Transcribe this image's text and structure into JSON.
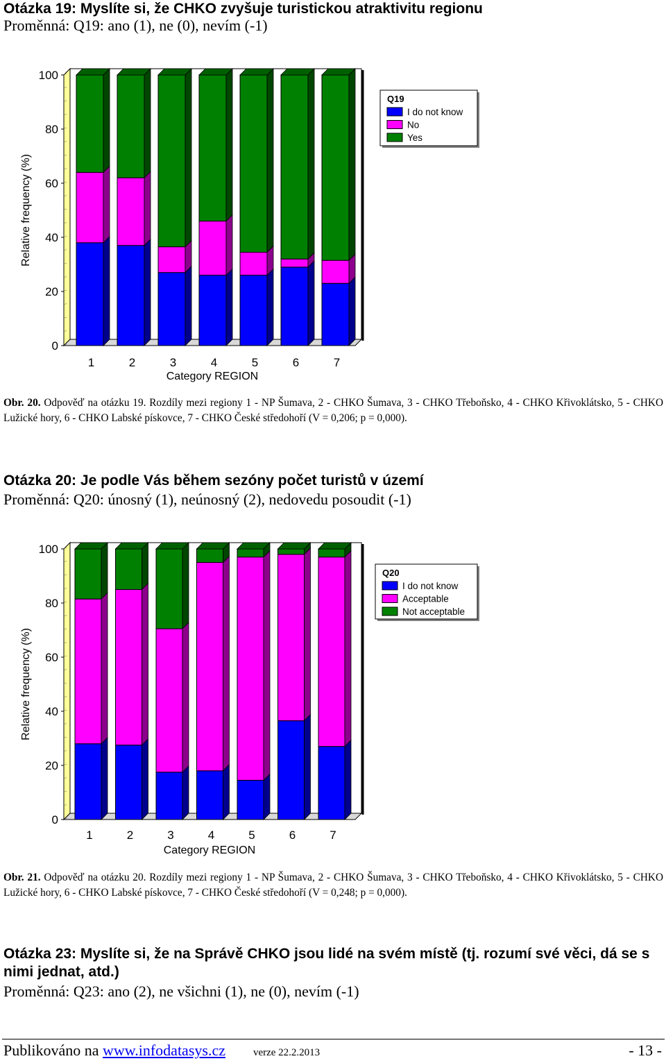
{
  "sections": [
    {
      "title": "Otázka 19: Myslíte si, že CHKO zvyšuje turistickou atraktivitu regionu",
      "variable": "Proměnná: Q19: ano (1), ne (0), nevím (-1)",
      "caption": {
        "label": "Obr. 20.",
        "text": " Odpověď na otázku 19. Rozdíly mezi regiony 1 - NP Šumava, 2 - CHKO Šumava, 3 - CHKO Třeboňsko, 4 - CHKO Křivoklátsko, 5 - CHKO Lužické hory, 6 - CHKO Labské pískovce, 7 - CHKO České středohoří (V = 0,206; p = 0,000)."
      }
    },
    {
      "title": "Otázka 20: Je podle Vás během sezóny počet turistů v území",
      "variable": "Proměnná: Q20: únosný (1), neúnosný (2), nedovedu posoudit (-1)",
      "caption": {
        "label": "Obr. 21.",
        "text": " Odpověď na otázku 20. Rozdíly mezi regiony 1 - NP Šumava, 2 - CHKO Šumava, 3 - CHKO Třeboňsko, 4 - CHKO Křivoklátsko, 5 - CHKO Lužické hory, 6 - CHKO Labské pískovce, 7 - CHKO České středohoří (V = 0,248; p = 0,000)."
      }
    },
    {
      "title": "Otázka 23: Myslíte si, že na Správě CHKO jsou lidé na svém místě (tj. rozumí své věci, dá se s nimi jednat, atd.)",
      "variable": "Proměnná: Q23: ano (2), ne všichni (1), ne (0), nevím (-1)"
    }
  ],
  "footer": {
    "published_prefix": "Publikováno na ",
    "link_text": "www.infodatasys.cz",
    "version": "verze 22.2.2013",
    "page_number": "- 13 -"
  },
  "chart_data": [
    {
      "type": "bar",
      "stacked": true,
      "title": "",
      "xlabel": "Category REGION",
      "ylabel": "Relative frequency (%)",
      "ylim": [
        0,
        100
      ],
      "yticks": [
        0,
        20,
        40,
        60,
        80,
        100
      ],
      "categories": [
        "1",
        "2",
        "3",
        "4",
        "5",
        "6",
        "7"
      ],
      "legend_title": "Q19",
      "legend_position": "top-right",
      "series": [
        {
          "name": "I do not know",
          "color": "#0000ff",
          "values": [
            38,
            37,
            27,
            26,
            26,
            29,
            23
          ]
        },
        {
          "name": "No",
          "color": "#ff00ff",
          "values": [
            26,
            25,
            9.5,
            20,
            8.5,
            3,
            8.5
          ]
        },
        {
          "name": "Yes",
          "color": "#008000",
          "values": [
            36,
            38,
            63.5,
            54,
            65.5,
            68,
            68.5
          ]
        }
      ]
    },
    {
      "type": "bar",
      "stacked": true,
      "title": "",
      "xlabel": "Category REGION",
      "ylabel": "Relative frequency (%)",
      "ylim": [
        0,
        100
      ],
      "yticks": [
        0,
        20,
        40,
        60,
        80,
        100
      ],
      "categories": [
        "1",
        "2",
        "3",
        "4",
        "5",
        "6",
        "7"
      ],
      "legend_title": "Q20",
      "legend_position": "top-right",
      "series": [
        {
          "name": "I do not know",
          "color": "#0000ff",
          "values": [
            28,
            27.5,
            17.5,
            18,
            14.5,
            36.5,
            27
          ]
        },
        {
          "name": "Acceptable",
          "color": "#ff00ff",
          "values": [
            53.5,
            57.5,
            53,
            77,
            82.5,
            61.5,
            70
          ]
        },
        {
          "name": "Not acceptable",
          "color": "#008000",
          "values": [
            18.5,
            15,
            29.5,
            5,
            3,
            2,
            3
          ]
        }
      ]
    }
  ]
}
